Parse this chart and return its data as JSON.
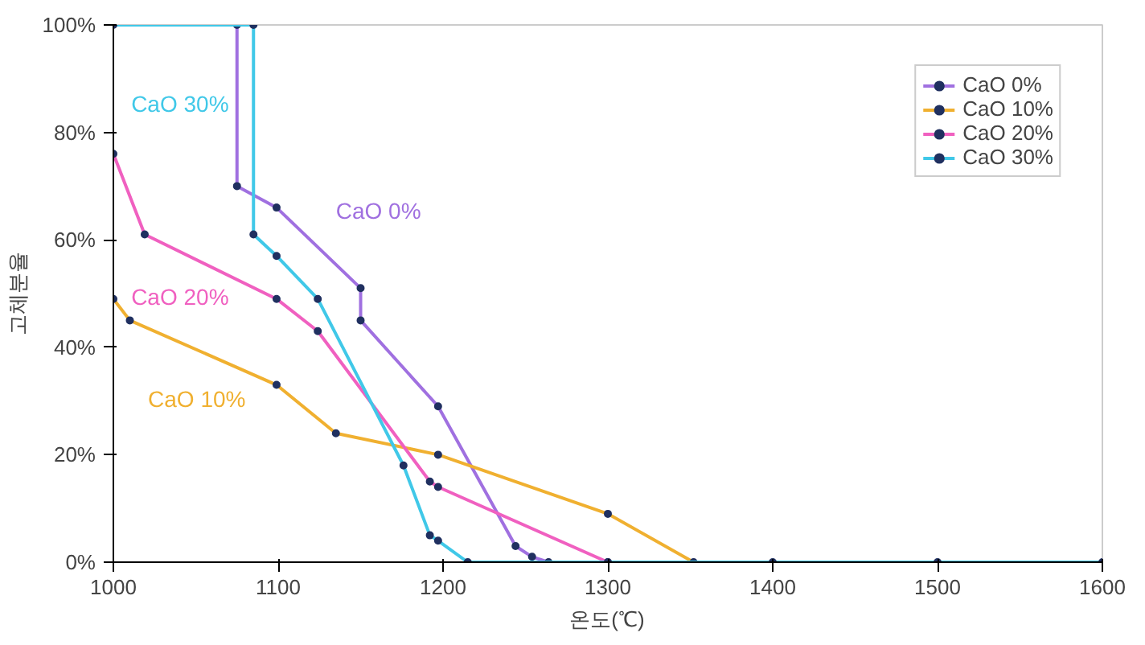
{
  "chart_data": {
    "type": "line",
    "xlabel": "온도(℃)",
    "ylabel": "고체분율",
    "xlim": [
      1000,
      1600
    ],
    "ylim": [
      0,
      100
    ],
    "xticks": [
      1000,
      1100,
      1200,
      1300,
      1400,
      1500,
      1600
    ],
    "yticks": [
      {
        "value": 0,
        "label": "0%"
      },
      {
        "value": 20,
        "label": "20%"
      },
      {
        "value": 40,
        "label": "40%"
      },
      {
        "value": 60,
        "label": "60%"
      },
      {
        "value": 80,
        "label": "80%"
      },
      {
        "value": 100,
        "label": "100%"
      }
    ],
    "series": [
      {
        "name": "CaO 0%",
        "color": "#a070e0",
        "x": [
          1075,
          1075,
          1099,
          1150,
          1150,
          1197,
          1244,
          1254,
          1264
        ],
        "values": [
          100,
          70,
          66,
          51,
          45,
          29,
          3,
          1,
          0
        ]
      },
      {
        "name": "CaO 10%",
        "color": "#f0b030",
        "x": [
          1000,
          1010,
          1099,
          1135,
          1197,
          1300,
          1352
        ],
        "values": [
          49,
          45,
          33,
          24,
          20,
          9,
          0
        ]
      },
      {
        "name": "CaO 20%",
        "color": "#f060c0",
        "x": [
          1000,
          1019,
          1099,
          1124,
          1192,
          1197,
          1300
        ],
        "values": [
          76,
          61,
          49,
          43,
          15,
          14,
          0
        ]
      },
      {
        "name": "CaO 30%",
        "color": "#40c8e8",
        "x": [
          1000,
          1085,
          1085,
          1099,
          1124,
          1176,
          1192,
          1197,
          1215,
          1300,
          1400,
          1500,
          1600
        ],
        "values": [
          100,
          100,
          61,
          57,
          49,
          18,
          5,
          4,
          0,
          0,
          0,
          0,
          0
        ]
      }
    ],
    "annotations": [
      "CaO 0%",
      "CaO 10%",
      "CaO 20%",
      "CaO 30%"
    ],
    "legend": "top right",
    "marker": "circle",
    "grid": false
  }
}
